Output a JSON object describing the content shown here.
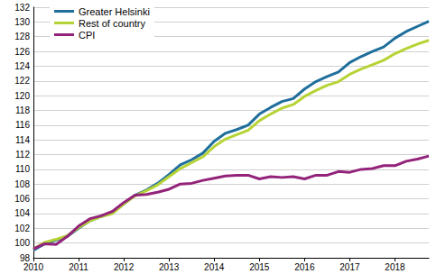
{
  "chart_data": {
    "type": "line",
    "categories": [
      "2010",
      null,
      null,
      null,
      "2011",
      null,
      null,
      null,
      "2012",
      null,
      null,
      null,
      "2013",
      null,
      null,
      null,
      "2014",
      null,
      null,
      null,
      "2015",
      null,
      null,
      null,
      "2016",
      null,
      null,
      null,
      "2017",
      null,
      null,
      null,
      "2018",
      null,
      null,
      null
    ],
    "series": [
      {
        "name": "Greater Helsinki",
        "color": "#1f6e9c",
        "values": [
          99.0,
          99.9,
          100.4,
          100.9,
          102.0,
          103.0,
          103.6,
          104.1,
          105.3,
          106.5,
          107.2,
          108.1,
          109.3,
          110.6,
          111.3,
          112.2,
          113.8,
          114.9,
          115.4,
          116.0,
          117.5,
          118.4,
          119.2,
          119.6,
          120.9,
          121.9,
          122.6,
          123.2,
          124.5,
          125.3,
          126.0,
          126.6,
          127.8,
          128.7,
          129.4,
          130.1
        ]
      },
      {
        "name": "Rest of country",
        "color": "#b6d335",
        "values": [
          99.2,
          100.1,
          100.5,
          101.0,
          102.1,
          103.0,
          103.6,
          104.0,
          105.3,
          106.4,
          107.1,
          107.9,
          109.0,
          110.1,
          110.9,
          111.7,
          113.1,
          114.1,
          114.7,
          115.3,
          116.6,
          117.5,
          118.3,
          118.8,
          119.9,
          120.7,
          121.4,
          121.9,
          122.9,
          123.6,
          124.2,
          124.8,
          125.7,
          126.4,
          127.0,
          127.5
        ]
      },
      {
        "name": "CPI",
        "color": "#93237a",
        "values": [
          99.2,
          99.9,
          99.8,
          100.9,
          102.3,
          103.3,
          103.7,
          104.3,
          105.5,
          106.5,
          106.6,
          106.9,
          107.3,
          108.0,
          108.1,
          108.5,
          108.8,
          109.1,
          109.2,
          109.2,
          108.7,
          109.0,
          108.9,
          109.0,
          108.7,
          109.2,
          109.2,
          109.7,
          109.6,
          110.0,
          110.1,
          110.5,
          110.5,
          111.1,
          111.4,
          111.8
        ]
      }
    ],
    "ylim": [
      98,
      132
    ],
    "yticks": [
      98,
      100,
      102,
      104,
      106,
      108,
      110,
      112,
      114,
      116,
      118,
      120,
      122,
      124,
      126,
      128,
      130,
      132
    ],
    "grid": true,
    "legend": "top-left"
  }
}
